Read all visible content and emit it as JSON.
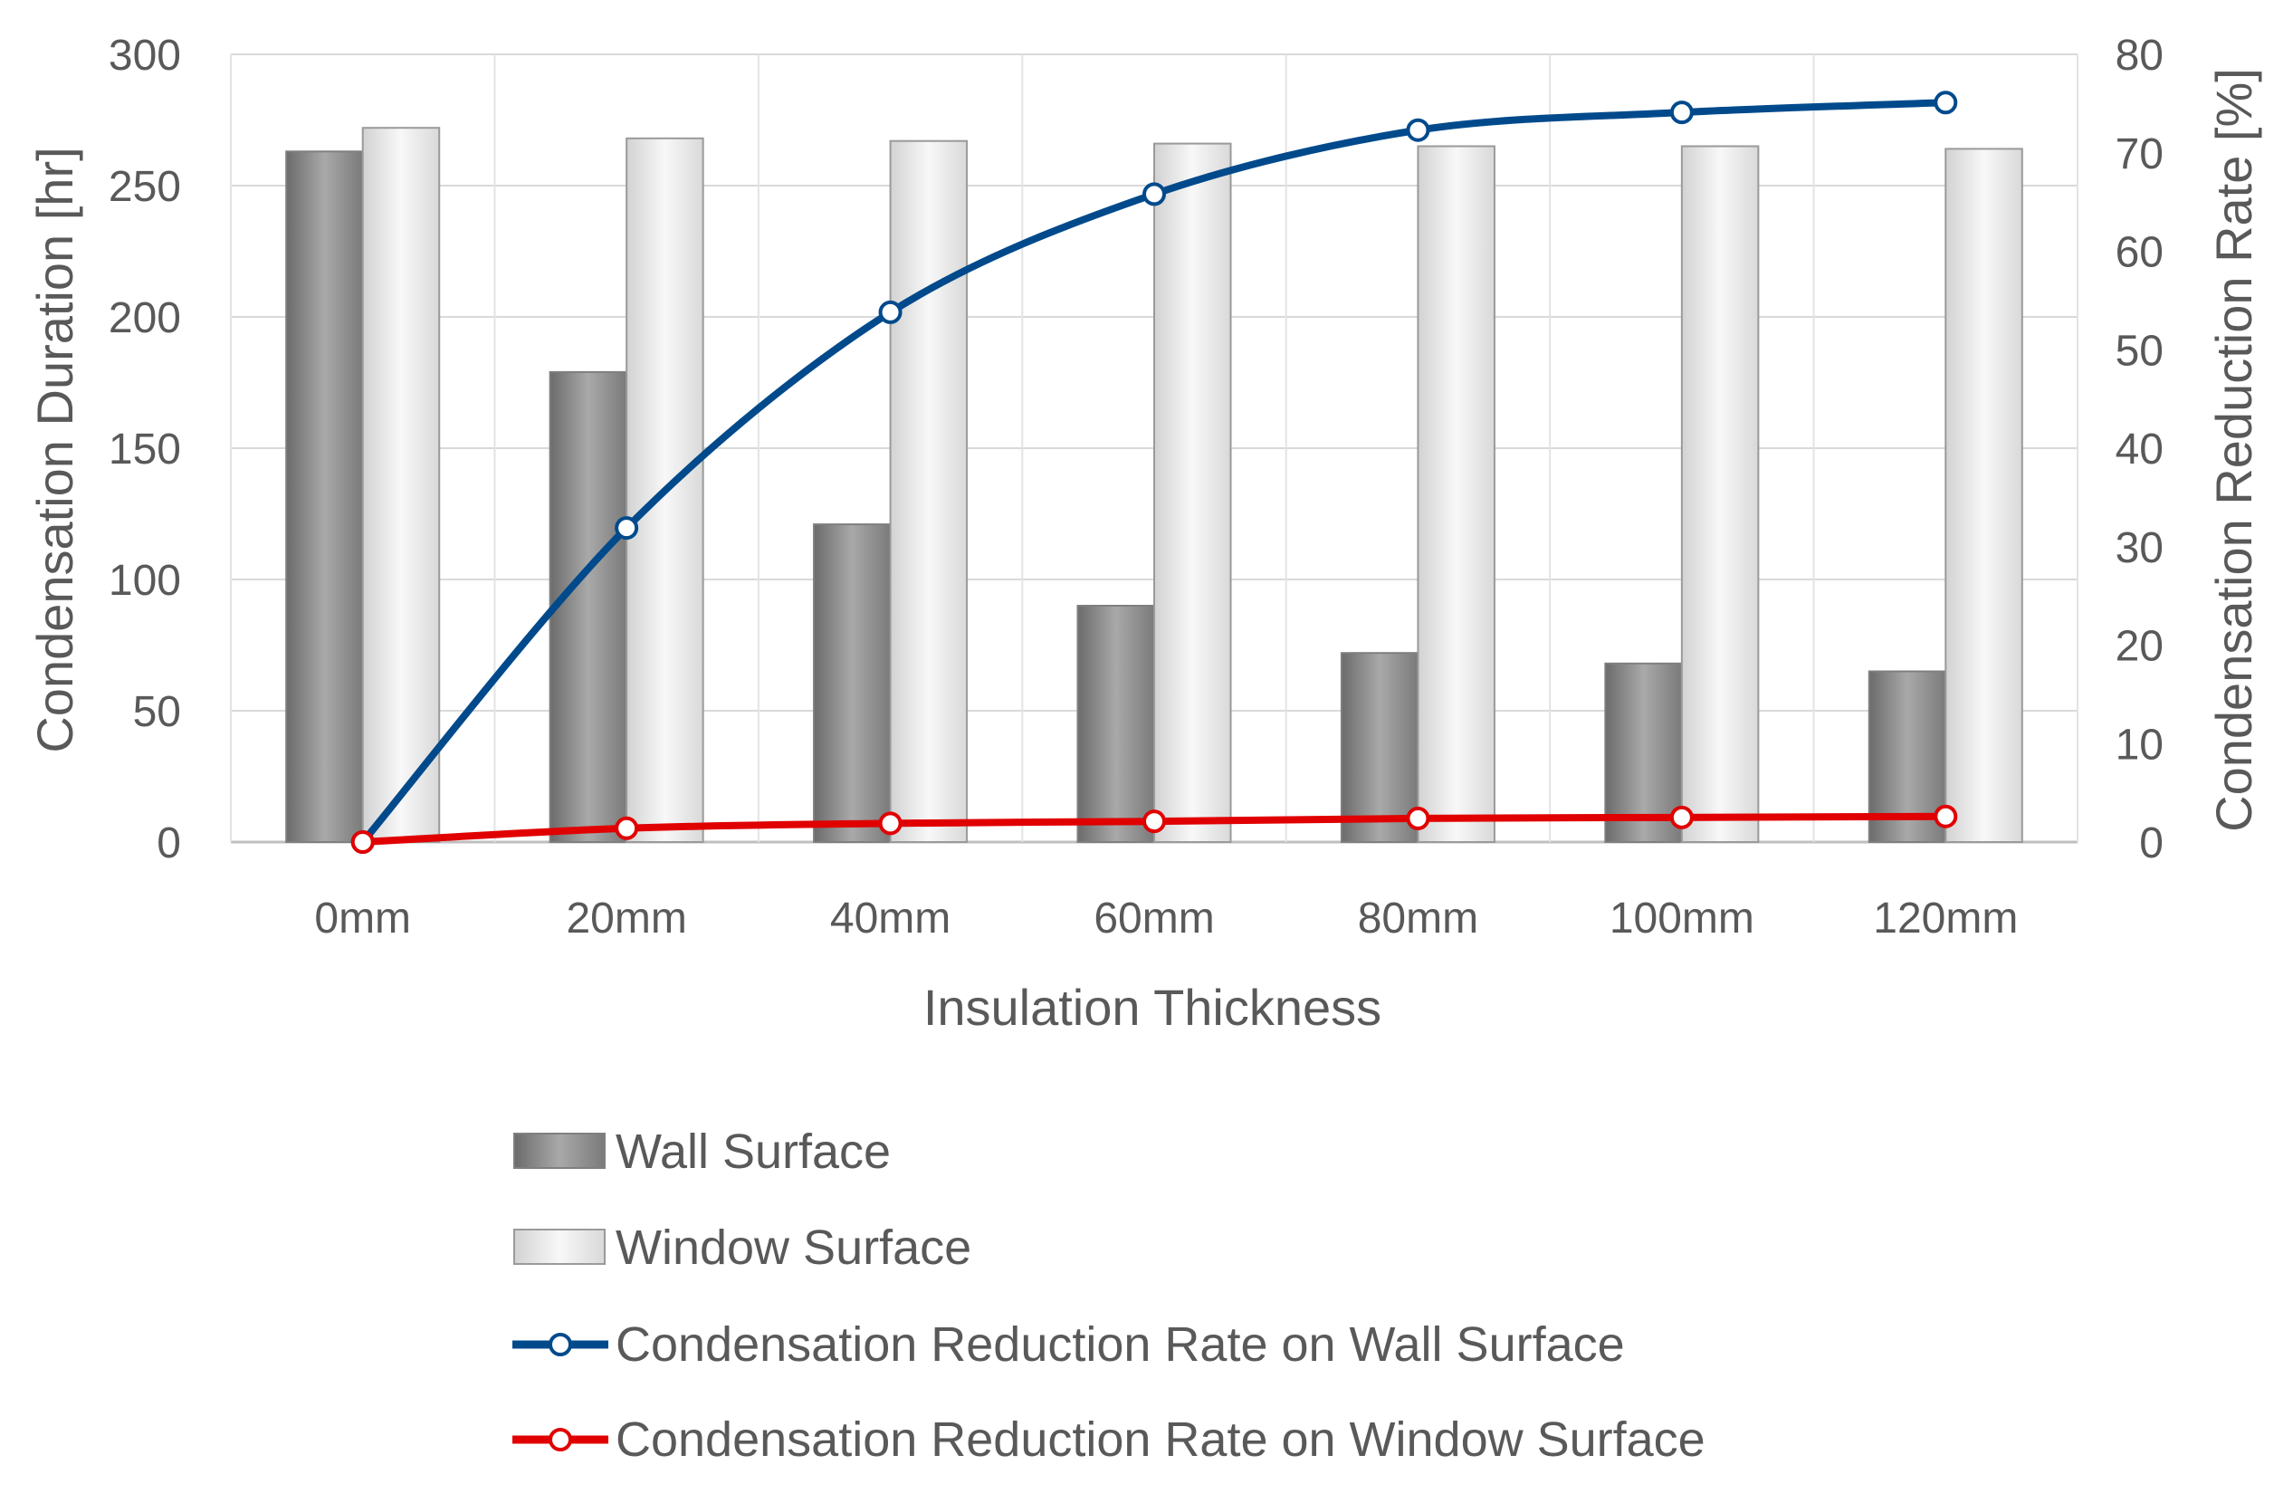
{
  "chart_data": {
    "type": "bar",
    "categories": [
      "0mm",
      "20mm",
      "40mm",
      "60mm",
      "80mm",
      "100mm",
      "120mm"
    ],
    "series": [
      {
        "name": "Wall Surface",
        "kind": "bar",
        "axis": "left",
        "color": "#8c8c8c",
        "values": [
          263,
          179,
          121,
          90,
          72,
          68,
          65
        ]
      },
      {
        "name": "Window Surface",
        "kind": "bar",
        "axis": "left",
        "color": "#e6e6e6",
        "values": [
          272,
          268,
          267,
          266,
          265,
          265,
          264
        ]
      },
      {
        "name": "Condensation Reduction Rate on Wall Surface",
        "kind": "line",
        "axis": "right",
        "color": "#004a8c",
        "values": [
          0,
          31.9,
          53.8,
          65.8,
          72.3,
          74.1,
          75.1
        ]
      },
      {
        "name": "Condensation Reduction Rate on Window Surface",
        "kind": "line",
        "axis": "right",
        "color": "#e00000",
        "values": [
          0,
          1.4,
          1.9,
          2.1,
          2.4,
          2.5,
          2.6
        ]
      }
    ],
    "xlabel": "Insulation Thickness",
    "ylabel": "Condensation Duration [hr]",
    "y2label": "Condensation Reduction Rate [%]",
    "ylim": [
      0,
      300
    ],
    "y2lim": [
      0,
      80
    ],
    "yticks": [
      "0",
      "50",
      "100",
      "150",
      "200",
      "250",
      "300"
    ],
    "y2ticks": [
      "0",
      "10",
      "20",
      "30",
      "40",
      "50",
      "60",
      "70",
      "80"
    ],
    "grid": true,
    "legend": "bottom"
  }
}
